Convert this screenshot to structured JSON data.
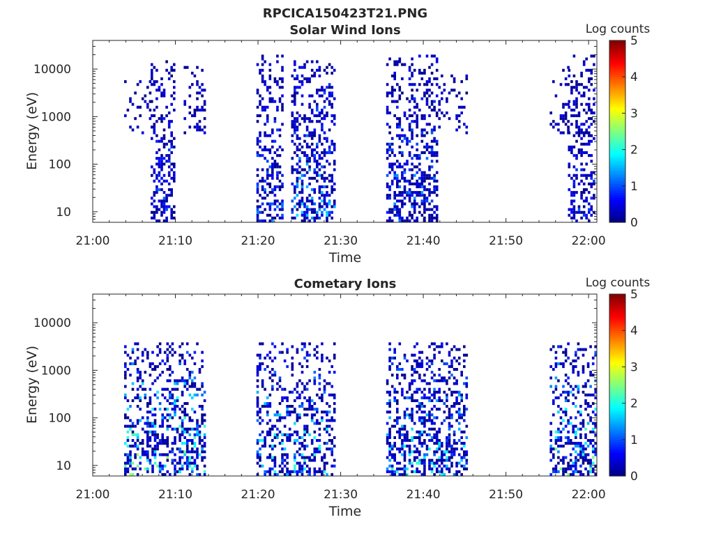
{
  "figure": {
    "title": "RPCICA150423T21.PNG"
  },
  "colorscale": {
    "label": "Log counts",
    "range": [
      0,
      5
    ],
    "ticks": [
      "0",
      "1",
      "2",
      "3",
      "4",
      "5"
    ],
    "colormap": "jet"
  },
  "chart_data": [
    {
      "type": "heatmap",
      "title": "Solar Wind Ions",
      "xlabel": "Time",
      "ylabel": "Energy (eV)",
      "x_ticks": [
        "21:00",
        "21:10",
        "21:20",
        "21:30",
        "21:40",
        "21:50",
        "22:00"
      ],
      "x_range_minutes": [
        0,
        61
      ],
      "y_scale": "log",
      "y_ticks": [
        "10",
        "100",
        "1000",
        "10000"
      ],
      "y_range": [
        6,
        40000
      ],
      "color_range": [
        0,
        5
      ],
      "colorbar_label": "Log counts",
      "bursts": [
        {
          "start_min": 3.8,
          "end_min": 6.8,
          "e_min": 400,
          "e_max": 6000,
          "density": 0.25,
          "level_max": 0.6
        },
        {
          "start_min": 7.0,
          "end_min": 10.0,
          "e_min": 6,
          "e_max": 15000,
          "density": 0.45,
          "level_max": 1.3
        },
        {
          "start_min": 11.0,
          "end_min": 13.5,
          "e_min": 400,
          "e_max": 12000,
          "density": 0.35,
          "level_max": 0.7
        },
        {
          "start_min": 19.8,
          "end_min": 23.0,
          "e_min": 6,
          "e_max": 20000,
          "density": 0.45,
          "level_max": 1.4
        },
        {
          "start_min": 24.0,
          "end_min": 29.2,
          "e_min": 6,
          "e_max": 15000,
          "density": 0.45,
          "level_max": 1.9
        },
        {
          "start_min": 35.5,
          "end_min": 41.5,
          "e_min": 6,
          "e_max": 20000,
          "density": 0.45,
          "level_max": 1.6
        },
        {
          "start_min": 41.5,
          "end_min": 45.2,
          "e_min": 400,
          "e_max": 8000,
          "density": 0.3,
          "level_max": 0.6
        },
        {
          "start_min": 55.3,
          "end_min": 57.5,
          "e_min": 400,
          "e_max": 12000,
          "density": 0.25,
          "level_max": 0.6
        },
        {
          "start_min": 57.5,
          "end_min": 60.7,
          "e_min": 6,
          "e_max": 20000,
          "density": 0.45,
          "level_max": 1.1
        }
      ]
    },
    {
      "type": "heatmap",
      "title": "Cometary Ions",
      "xlabel": "Time",
      "ylabel": "Energy (eV)",
      "x_ticks": [
        "21:00",
        "21:10",
        "21:20",
        "21:30",
        "21:40",
        "21:50",
        "22:00"
      ],
      "x_range_minutes": [
        0,
        61
      ],
      "y_scale": "log",
      "y_ticks": [
        "10",
        "100",
        "1000",
        "10000"
      ],
      "y_range": [
        6,
        40000
      ],
      "color_range": [
        0,
        5
      ],
      "colorbar_label": "Log counts",
      "bursts": [
        {
          "start_min": 3.8,
          "end_min": 13.5,
          "e_min": 6,
          "e_max": 4000,
          "density": 0.45,
          "level_max": 3.0
        },
        {
          "start_min": 19.8,
          "end_min": 29.2,
          "e_min": 6,
          "e_max": 4000,
          "density": 0.4,
          "level_max": 2.4
        },
        {
          "start_min": 35.5,
          "end_min": 45.2,
          "e_min": 6,
          "e_max": 4000,
          "density": 0.45,
          "level_max": 2.3
        },
        {
          "start_min": 55.3,
          "end_min": 60.7,
          "e_min": 6,
          "e_max": 4000,
          "density": 0.45,
          "level_max": 2.8
        }
      ]
    }
  ]
}
